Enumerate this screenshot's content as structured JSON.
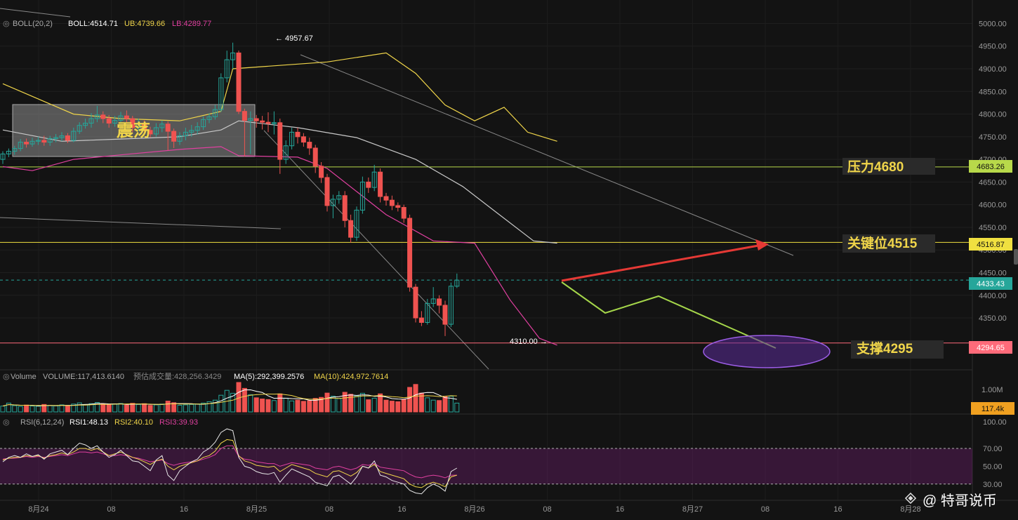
{
  "indicators": {
    "boll": {
      "name": "BOLL(20,2)",
      "mid": "BOLL:4514.71",
      "ub": "UB:4739.66",
      "lb": "LB:4289.77"
    },
    "volume": {
      "name": "Volume",
      "value": "VOLUME:117,413.6140",
      "est": "预估成交量:428,256.3429",
      "ma5": "MA(5):292,399.2576",
      "ma10": "MA(10):424,972.7614"
    },
    "rsi": {
      "name": "RSI(6,12,24)",
      "rsi1": "RSI1:48.13",
      "rsi2": "RSI2:40.10",
      "rsi3": "RSI3:39.93"
    }
  },
  "annotations": {
    "range_box_label": "震荡",
    "resistance_label": "压力4680",
    "key_level_label": "关键位4515",
    "support_label": "支撑4295",
    "high_marker": "← 4957.67",
    "low_marker": "4310.00 →"
  },
  "price_tags": {
    "resistance": "4683.26",
    "key_level": "4516.87",
    "current": "4433.43",
    "support": "4294.65",
    "volume_current": "117.4k"
  },
  "watermark": "@ 特哥说币",
  "colors": {
    "up": "#26a69a",
    "down": "#ef5350",
    "ub": "#f0d54a",
    "lb": "#e040a0",
    "mid": "#c8c8c8",
    "resistance": "#b8d94a",
    "key": "#f0e040",
    "support": "#ff6b7a",
    "current": "#26a69a",
    "arrow": "#e53935",
    "path": "#a5d64a",
    "ellipse": "#7b3fbf"
  },
  "chart_data": {
    "type": "candlestick",
    "x_ticks": [
      "8月24",
      "08",
      "16",
      "8月25",
      "08",
      "16",
      "8月26",
      "08",
      "16",
      "8月27",
      "08",
      "16",
      "8月28"
    ],
    "y_ticks": [
      4350,
      4400,
      4450,
      4500,
      4550,
      4600,
      4650,
      4700,
      4750,
      4800,
      4850,
      4900,
      4950,
      5000
    ],
    "ylim": [
      4285,
      5010
    ],
    "candles": [
      [
        4700,
        4712,
        4690,
        4718
      ],
      [
        4712,
        4718,
        4705,
        4724
      ],
      [
        4718,
        4724,
        4710,
        4730
      ],
      [
        4724,
        4738,
        4718,
        4745
      ],
      [
        4738,
        4734,
        4726,
        4746
      ],
      [
        4734,
        4740,
        4728,
        4748
      ],
      [
        4740,
        4742,
        4732,
        4750
      ],
      [
        4742,
        4738,
        4730,
        4752
      ],
      [
        4738,
        4746,
        4730,
        4752
      ],
      [
        4746,
        4748,
        4738,
        4756
      ],
      [
        4748,
        4752,
        4740,
        4760
      ],
      [
        4752,
        4742,
        4736,
        4758
      ],
      [
        4742,
        4762,
        4738,
        4770
      ],
      [
        4762,
        4775,
        4756,
        4782
      ],
      [
        4775,
        4780,
        4768,
        4790
      ],
      [
        4780,
        4790,
        4770,
        4802
      ],
      [
        4790,
        4798,
        4782,
        4818
      ],
      [
        4798,
        4790,
        4780,
        4806
      ],
      [
        4790,
        4780,
        4770,
        4798
      ],
      [
        4780,
        4786,
        4772,
        4796
      ],
      [
        4786,
        4796,
        4780,
        4805
      ],
      [
        4796,
        4790,
        4782,
        4808
      ],
      [
        4790,
        4770,
        4760,
        4796
      ],
      [
        4770,
        4780,
        4762,
        4790
      ],
      [
        4780,
        4764,
        4756,
        4786
      ],
      [
        4764,
        4756,
        4748,
        4772
      ],
      [
        4756,
        4770,
        4750,
        4780
      ],
      [
        4770,
        4778,
        4760,
        4786
      ],
      [
        4778,
        4762,
        4720,
        4784
      ],
      [
        4762,
        4740,
        4725,
        4768
      ],
      [
        4740,
        4752,
        4732,
        4760
      ],
      [
        4752,
        4760,
        4742,
        4770
      ],
      [
        4760,
        4764,
        4750,
        4776
      ],
      [
        4764,
        4772,
        4755,
        4782
      ],
      [
        4772,
        4788,
        4765,
        4795
      ],
      [
        4788,
        4794,
        4780,
        4802
      ],
      [
        4794,
        4810,
        4788,
        4820
      ],
      [
        4810,
        4880,
        4805,
        4890
      ],
      [
        4880,
        4920,
        4870,
        4940
      ],
      [
        4920,
        4935,
        4900,
        4957.67
      ],
      [
        4935,
        4806,
        4800,
        4940
      ],
      [
        4806,
        4786,
        4706,
        4812
      ],
      [
        4786,
        4790,
        4712,
        4806
      ],
      [
        4790,
        4785,
        4770,
        4798
      ],
      [
        4785,
        4782,
        4766,
        4796
      ],
      [
        4782,
        4779,
        4760,
        4804
      ],
      [
        4779,
        4781,
        4755,
        4806
      ],
      [
        4781,
        4700,
        4668,
        4790
      ],
      [
        4700,
        4730,
        4690,
        4742
      ],
      [
        4730,
        4760,
        4722,
        4770
      ],
      [
        4760,
        4750,
        4735,
        4770
      ],
      [
        4750,
        4738,
        4728,
        4758
      ],
      [
        4738,
        4725,
        4710,
        4748
      ],
      [
        4725,
        4685,
        4670,
        4732
      ],
      [
        4685,
        4660,
        4648,
        4694
      ],
      [
        4660,
        4598,
        4585,
        4668
      ],
      [
        4598,
        4612,
        4570,
        4622
      ],
      [
        4612,
        4620,
        4602,
        4630
      ],
      [
        4620,
        4565,
        4550,
        4630
      ],
      [
        4565,
        4528,
        4516,
        4578
      ],
      [
        4528,
        4588,
        4520,
        4596
      ],
      [
        4588,
        4650,
        4580,
        4662
      ],
      [
        4650,
        4638,
        4626,
        4660
      ],
      [
        4638,
        4672,
        4630,
        4688
      ],
      [
        4672,
        4618,
        4605,
        4680
      ],
      [
        4618,
        4610,
        4598,
        4626
      ],
      [
        4610,
        4598,
        4588,
        4620
      ],
      [
        4598,
        4594,
        4585,
        4605
      ],
      [
        4594,
        4570,
        4560,
        4600
      ],
      [
        4570,
        4418,
        4408,
        4578
      ],
      [
        4418,
        4350,
        4340,
        4425
      ],
      [
        4350,
        4340,
        4332,
        4365
      ],
      [
        4340,
        4382,
        4335,
        4392
      ],
      [
        4382,
        4392,
        4374,
        4418
      ],
      [
        4392,
        4378,
        4360,
        4400
      ],
      [
        4378,
        4336,
        4310,
        4388
      ],
      [
        4336,
        4420,
        4330,
        4428
      ],
      [
        4420,
        4433.43,
        4416,
        4448
      ]
    ],
    "volume": [
      30,
      45,
      32,
      28,
      35,
      30,
      29,
      38,
      33,
      31,
      36,
      30,
      40,
      46,
      38,
      42,
      48,
      40,
      36,
      39,
      43,
      35,
      44,
      38,
      42,
      33,
      36,
      40,
      55,
      47,
      34,
      36,
      38,
      41,
      45,
      52,
      60,
      85,
      110,
      95,
      150,
      120,
      88,
      72,
      66,
      63,
      58,
      92,
      70,
      56,
      60,
      54,
      57,
      69,
      74,
      96,
      80,
      68,
      100,
      90,
      82,
      95,
      62,
      70,
      92,
      60,
      55,
      52,
      64,
      125,
      140,
      96,
      72,
      60,
      58,
      78,
      80,
      45
    ],
    "rsi1": [
      55,
      60,
      62,
      60,
      64,
      61,
      63,
      58,
      64,
      66,
      68,
      63,
      70,
      76,
      74,
      70,
      73,
      66,
      60,
      63,
      68,
      62,
      56,
      55,
      50,
      45,
      57,
      62,
      40,
      34,
      45,
      50,
      55,
      58,
      66,
      70,
      77,
      88,
      92,
      90,
      60,
      50,
      48,
      44,
      42,
      41,
      43,
      32,
      40,
      47,
      44,
      41,
      38,
      32,
      30,
      28,
      38,
      40,
      35,
      30,
      38,
      50,
      48,
      56,
      40,
      38,
      34,
      32,
      30,
      23,
      20,
      19,
      26,
      30,
      27,
      22,
      44,
      48
    ],
    "rsi2": [
      57,
      59,
      60,
      60,
      62,
      61,
      62,
      59,
      62,
      63,
      65,
      63,
      66,
      70,
      70,
      68,
      70,
      66,
      62,
      64,
      66,
      63,
      60,
      58,
      55,
      52,
      56,
      58,
      50,
      46,
      50,
      52,
      54,
      56,
      60,
      62,
      67,
      76,
      80,
      79,
      62,
      56,
      54,
      51,
      50,
      49,
      50,
      44,
      48,
      52,
      50,
      48,
      46,
      42,
      40,
      38,
      44,
      45,
      42,
      39,
      43,
      50,
      48,
      52,
      44,
      42,
      40,
      38,
      36,
      30,
      27,
      26,
      30,
      32,
      30,
      27,
      38,
      40
    ],
    "rsi3": [
      58,
      59,
      59,
      60,
      61,
      60,
      61,
      60,
      61,
      62,
      63,
      62,
      64,
      66,
      66,
      65,
      66,
      64,
      62,
      62,
      63,
      62,
      60,
      59,
      57,
      55,
      56,
      57,
      53,
      51,
      53,
      54,
      55,
      56,
      58,
      60,
      63,
      70,
      73,
      73,
      61,
      58,
      57,
      55,
      54,
      53,
      53,
      50,
      52,
      54,
      53,
      52,
      51,
      48,
      47,
      46,
      49,
      50,
      48,
      46,
      48,
      52,
      51,
      53,
      49,
      48,
      47,
      46,
      45,
      41,
      38,
      37,
      39,
      40,
      39,
      37,
      40,
      40
    ],
    "boll_ub": [
      [
        0,
        4867
      ],
      [
        12,
        4800
      ],
      [
        20,
        4790
      ],
      [
        30,
        4785
      ],
      [
        37,
        4806
      ],
      [
        39,
        4900
      ],
      [
        55,
        4915
      ],
      [
        65,
        4935
      ],
      [
        70,
        4890
      ],
      [
        75,
        4820
      ],
      [
        80,
        4785
      ],
      [
        85,
        4815
      ],
      [
        89,
        4760
      ],
      [
        94,
        4740
      ]
    ],
    "boll_mid": [
      [
        0,
        4765
      ],
      [
        10,
        4740
      ],
      [
        20,
        4745
      ],
      [
        30,
        4750
      ],
      [
        37,
        4765
      ],
      [
        40,
        4785
      ],
      [
        50,
        4770
      ],
      [
        60,
        4748
      ],
      [
        70,
        4700
      ],
      [
        78,
        4640
      ],
      [
        84,
        4580
      ],
      [
        90,
        4520
      ],
      [
        94,
        4515
      ]
    ],
    "boll_lb": [
      [
        0,
        4684
      ],
      [
        5,
        4675
      ],
      [
        12,
        4700
      ],
      [
        20,
        4710
      ],
      [
        30,
        4722
      ],
      [
        37,
        4728
      ],
      [
        40,
        4708
      ],
      [
        50,
        4705
      ],
      [
        55,
        4680
      ],
      [
        65,
        4578
      ],
      [
        73,
        4520
      ],
      [
        80,
        4515
      ],
      [
        86,
        4390
      ],
      [
        91,
        4305
      ],
      [
        94,
        4290
      ]
    ],
    "resistance": 4683.26,
    "key_level": 4516.87,
    "current": 4433.43,
    "support": 4294.65,
    "rsi_ylim": [
      18,
      100
    ],
    "rsi_ticks": [
      30,
      50,
      70,
      100
    ],
    "rsi_band": [
      30,
      70
    ]
  }
}
